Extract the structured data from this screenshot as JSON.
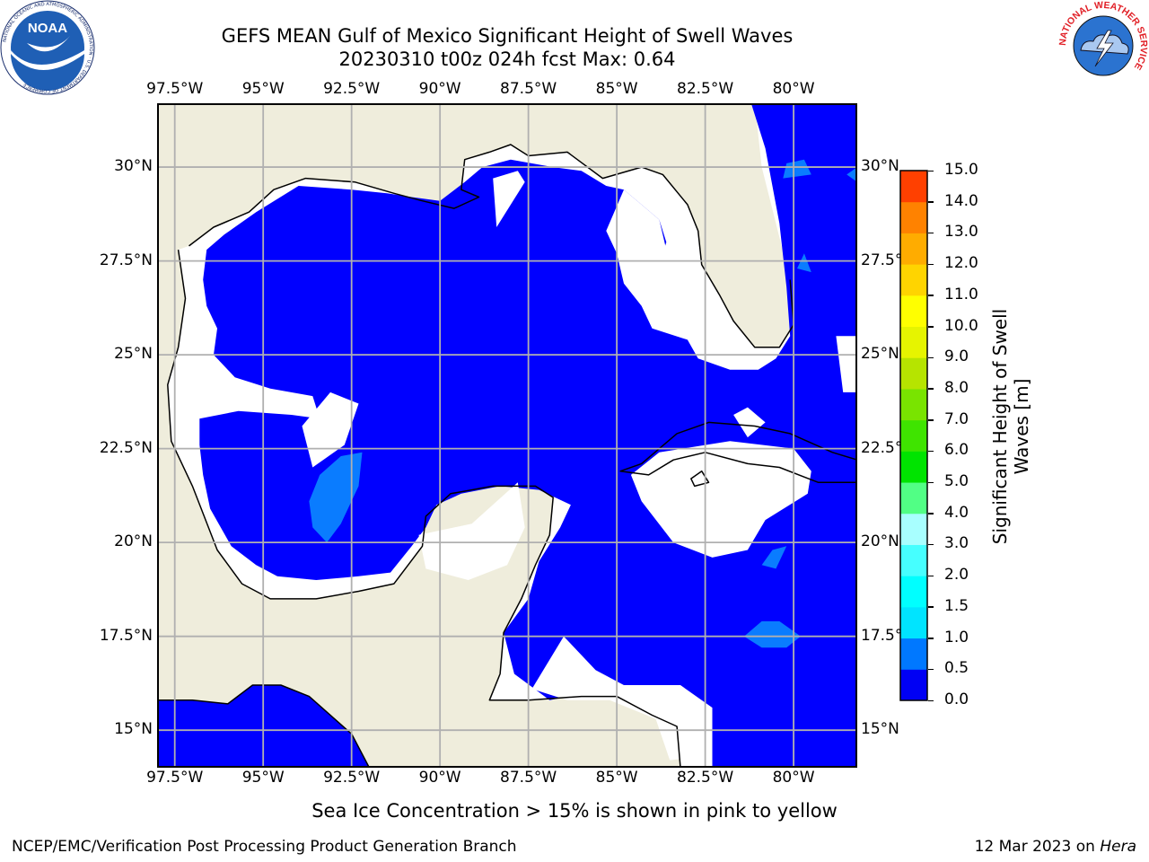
{
  "header": {
    "title_line1": "GEFS MEAN Gulf of Mexico Significant Height of Swell Waves",
    "title_line2": "20230310 t00z 024h fcst   Max: 0.64"
  },
  "map": {
    "lon_labels": [
      "97.5°W",
      "95°W",
      "92.5°W",
      "90°W",
      "87.5°W",
      "85°W",
      "82.5°W",
      "80°W"
    ],
    "lat_labels": [
      "30°N",
      "27.5°N",
      "25°N",
      "22.5°N",
      "20°N",
      "17.5°N",
      "15°N"
    ],
    "lon_range": [
      -98,
      -78.2
    ],
    "lat_range": [
      14,
      31.7
    ],
    "colors": {
      "land": "#efeddc",
      "ocean": "#0000ff",
      "grid": "#b0b0b0",
      "masked": "#ffffff"
    }
  },
  "colorbar": {
    "title": "Significant Height of Swell Waves [m]",
    "title_line1": "Significant Height of Swell",
    "title_line2": "Waves [m]",
    "tick_labels": [
      "0.0",
      "0.5",
      "1.0",
      "1.5",
      "2.0",
      "3.0",
      "4.0",
      "5.0",
      "6.0",
      "7.0",
      "8.0",
      "9.0",
      "10.0",
      "11.0",
      "12.0",
      "13.0",
      "14.0",
      "15.0"
    ],
    "bin_colors": [
      "#0000f4",
      "#0078ff",
      "#00e4ff",
      "#00ffff",
      "#46ffff",
      "#a8ffff",
      "#51ff85",
      "#00e400",
      "#3fe400",
      "#79e400",
      "#b6e400",
      "#e6f400",
      "#ffff00",
      "#ffd400",
      "#ffac00",
      "#ff8200",
      "#ff4000",
      "#ff0000"
    ]
  },
  "annotation": "Sea Ice Concentration > 15% is shown in pink to yellow",
  "footer": {
    "left": "NCEP/EMC/Verification Post Processing Product Generation Branch",
    "right_prefix": "12 Mar 2023 on",
    "right_machine": "Hera"
  },
  "logos": {
    "noaa": "NOAA",
    "noaa_ring": "NATIONAL OCEANIC AND ATMOSPHERIC ADMINISTRATION · U.S. DEPARTMENT OF COMMERCE",
    "nws_ring": "NATIONAL WEATHER SERVICE"
  }
}
